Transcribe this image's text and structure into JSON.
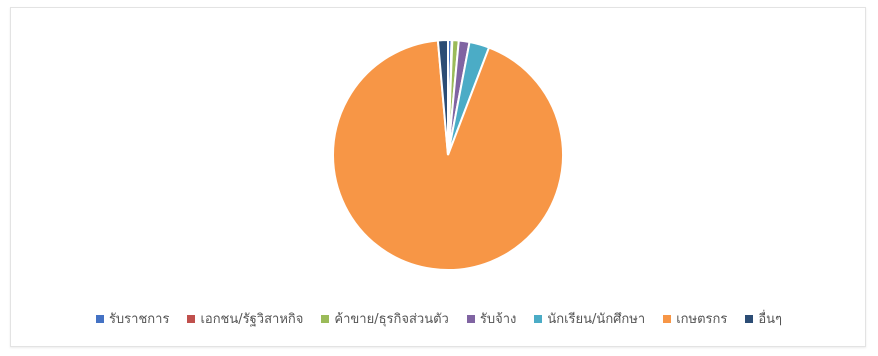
{
  "chart_data": {
    "type": "pie",
    "title": "",
    "series": [
      {
        "categories": [
          "รับราชการ",
          "เอกชน/รัฐวิสาหกิจ",
          "ค้าขาย/ธุรกิจส่วนตัว",
          "รับจ้าง",
          "นักเรียน/นักศึกษา",
          "เกษตรกร",
          "อื่นๆ"
        ],
        "values": [
          0.5,
          0.1,
          0.9,
          1.5,
          2.8,
          92.8,
          1.4
        ],
        "colors": [
          "#4472c4",
          "#c0504d",
          "#9bbb59",
          "#8064a2",
          "#4bacc6",
          "#f79646",
          "#2c4d75"
        ]
      }
    ],
    "legend_position": "bottom",
    "start_angle_deg": 0,
    "direction": "clockwise",
    "slice_border_color": "#ffffff"
  }
}
